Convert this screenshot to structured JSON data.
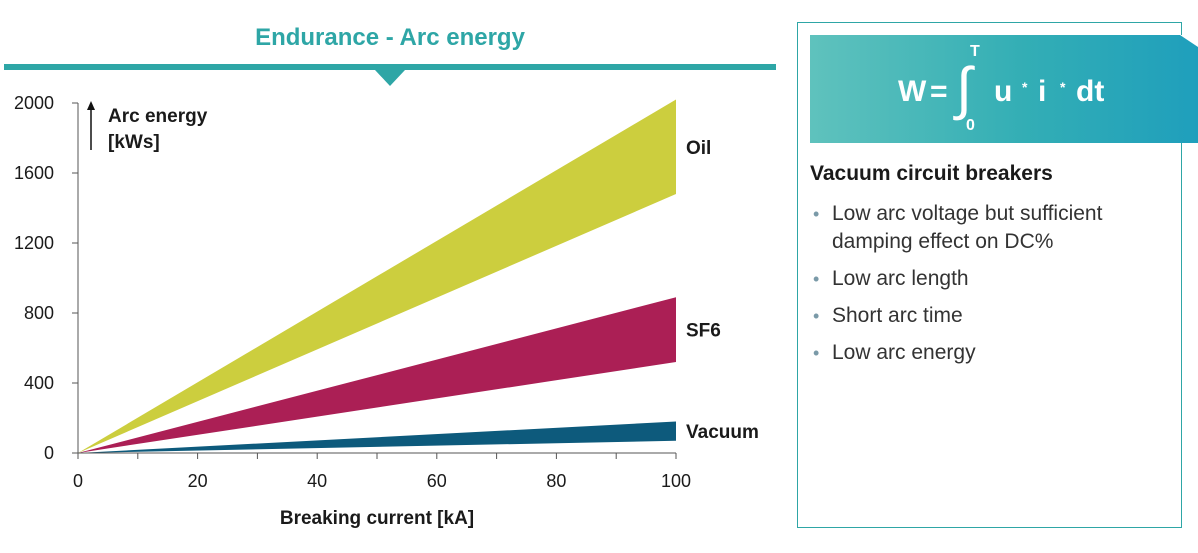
{
  "title": "Endurance - Arc energy",
  "chart_data": {
    "type": "area",
    "x_axis": {
      "label": "Breaking current [kA]",
      "range": [
        0,
        100
      ],
      "ticks": [
        0,
        20,
        40,
        60,
        80,
        100
      ]
    },
    "y_axis": {
      "label_line1": "Arc energy",
      "label_line2": "[kWs]",
      "range": [
        0,
        2000
      ],
      "ticks": [
        0,
        400,
        800,
        1200,
        1600,
        2000
      ]
    },
    "series": [
      {
        "name": "Oil",
        "color": "#ccce3e",
        "x": [
          0,
          100
        ],
        "upper": [
          0,
          2020
        ],
        "lower": [
          0,
          1480
        ]
      },
      {
        "name": "SF6",
        "color": "#ab1f55",
        "x": [
          0,
          100
        ],
        "upper": [
          0,
          890
        ],
        "lower": [
          0,
          520
        ]
      },
      {
        "name": "Vacuum",
        "color": "#0d5a7c",
        "x": [
          0,
          100
        ],
        "upper": [
          0,
          180
        ],
        "lower": [
          0,
          70
        ]
      }
    ]
  },
  "formula": {
    "lhs": "W",
    "eq": "=",
    "integral_upper": "T",
    "integral_lower": "0",
    "u": "u",
    "i": "i",
    "dt": "dt",
    "mult": "*"
  },
  "panel": {
    "heading": "Vacuum circuit breakers",
    "bullets": [
      "Low arc voltage but sufficient damping effect on DC%",
      "Low arc length",
      "Short arc time",
      "Low arc energy"
    ]
  }
}
